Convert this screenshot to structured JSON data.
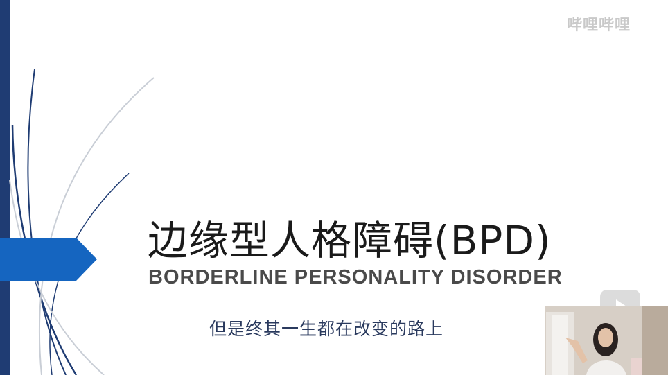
{
  "slide": {
    "title": "边缘型人格障碍(BPD)",
    "subtitle": "BORDERLINE PERSONALITY DISORDER",
    "caption": "但是终其一生都在改变的路上"
  },
  "watermark": {
    "text": "哔哩哔哩"
  },
  "colors": {
    "sidebar": "#1f3c73",
    "arrow": "#1565c0",
    "curve_dark": "#1f3c73",
    "curve_light": "#c9ced6"
  },
  "icons": {
    "play": "play-icon",
    "arrow": "arrow-shape"
  }
}
